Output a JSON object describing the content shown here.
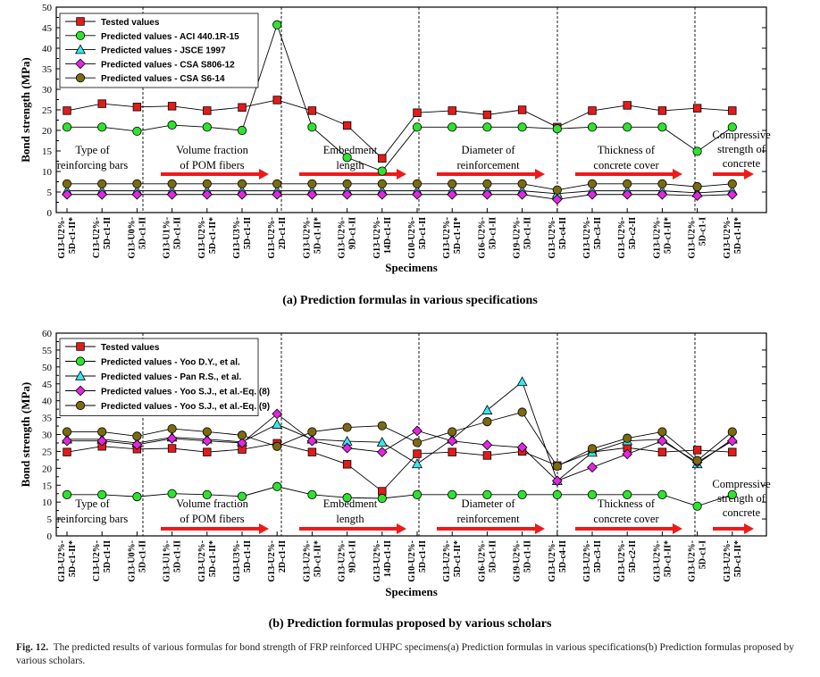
{
  "colors": {
    "tested": "#e21b1b",
    "green": "#2ee22e",
    "cyan": "#39e6ec",
    "magenta": "#e226e2",
    "olive": "#7a6a12",
    "arrow": "#ee1a1a"
  },
  "caption": {
    "label": "Fig. 12.",
    "text": "The predicted results of various formulas for bond strength of FRP reinforced UHPC specimens(a) Prediction formulas in various specifications(b) Prediction formulas proposed by various scholars."
  },
  "chart_data": [
    {
      "type": "line",
      "title": "(a) Prediction formulas in various specifications",
      "xlabel": "Specimens",
      "ylabel": "Bond strength (MPa)",
      "ylim": [
        0,
        50
      ],
      "yticks": [
        0,
        5,
        10,
        15,
        20,
        25,
        30,
        35,
        40,
        45,
        50
      ],
      "categories": [
        [
          "G13-U2%-",
          "5D-c1-II*"
        ],
        [
          "C13-U2%-",
          "5D-c1-II"
        ],
        [
          "G13-U0%-",
          "5D-c1-II"
        ],
        [
          "G13-U1%-",
          "5D-c1-II"
        ],
        [
          "G13-U2%-",
          "5D-c1-II*"
        ],
        [
          "G13-U3%-",
          "5D-c1-II"
        ],
        [
          "G13-U2%-",
          "2D-c1-II"
        ],
        [
          "G13-U2%-",
          "5D-c1-II*"
        ],
        [
          "G13-U2%-",
          "9D-c1-II"
        ],
        [
          "G13-U2%-",
          "14D-c1-II"
        ],
        [
          "G10-U2%-",
          "5D-c1-II"
        ],
        [
          "G13-U2%-",
          "5D-c1-II*"
        ],
        [
          "G16-U2%-",
          "5D-c1-II"
        ],
        [
          "G19-U2%-",
          "5D-c1-II"
        ],
        [
          "G13-U2%-",
          "5D-c4-II"
        ],
        [
          "G13-U2%-",
          "5D-c3-II"
        ],
        [
          "G13-U2%-",
          "5D-c2-II"
        ],
        [
          "G13-U2%-",
          "5D-c1-II*"
        ],
        [
          "G13-U2%-",
          "5D-c1-I"
        ],
        [
          "G13-U2%-",
          "5D-c1-II*"
        ]
      ],
      "series": [
        {
          "name": "Tested values",
          "marker": "square",
          "color": "#e21b1b",
          "values": [
            24.8,
            26.5,
            25.7,
            25.9,
            24.8,
            25.6,
            27.4,
            24.8,
            21.2,
            13.2,
            24.3,
            24.8,
            23.8,
            25.0,
            20.8,
            24.8,
            26.1,
            24.8,
            25.4,
            24.8
          ]
        },
        {
          "name": "Predicted values - ACI 440.1R-15",
          "marker": "circle",
          "color": "#2ee22e",
          "values": [
            20.8,
            20.8,
            19.8,
            21.3,
            20.8,
            20.0,
            45.7,
            20.8,
            13.4,
            10.1,
            20.8,
            20.8,
            20.8,
            20.8,
            20.4,
            20.8,
            20.8,
            20.8,
            14.9,
            20.8
          ]
        },
        {
          "name": "Predicted values - JSCE 1997",
          "marker": "triangle",
          "color": "#39e6ec",
          "values": [
            5.3,
            5.3,
            5.3,
            5.3,
            5.3,
            5.3,
            5.3,
            5.3,
            5.3,
            5.3,
            5.3,
            5.3,
            5.3,
            5.3,
            4.6,
            5.3,
            5.3,
            5.3,
            4.8,
            5.3
          ]
        },
        {
          "name": "Predicted values - CSA S806-12",
          "marker": "diamond",
          "color": "#e226e2",
          "values": [
            4.4,
            4.4,
            4.4,
            4.4,
            4.4,
            4.4,
            4.4,
            4.4,
            4.4,
            4.4,
            4.4,
            4.4,
            4.4,
            4.4,
            3.2,
            4.4,
            4.4,
            4.4,
            4.1,
            4.4
          ]
        },
        {
          "name": "Predicted values - CSA S6-14",
          "marker": "circle",
          "color": "#7a6a12",
          "values": [
            7.0,
            7.0,
            7.0,
            7.0,
            7.0,
            7.0,
            7.0,
            7.0,
            7.0,
            7.0,
            7.0,
            7.0,
            7.0,
            7.0,
            5.5,
            7.0,
            7.0,
            7.0,
            6.3,
            7.0
          ]
        }
      ],
      "groups": [
        {
          "label": [
            "Type of",
            "reinforcing bars"
          ],
          "arrow": false
        },
        {
          "label": [
            "Volume fraction",
            "of POM fibers"
          ],
          "arrow": true
        },
        {
          "label": [
            "Embedment",
            "length"
          ],
          "arrow": true
        },
        {
          "label": [
            "Diameter of",
            "reinforcement"
          ],
          "arrow": true
        },
        {
          "label": [
            "Thickness of",
            "concrete cover"
          ],
          "arrow": true
        },
        {
          "label": [
            "Compressive",
            "strength of",
            "concrete"
          ],
          "arrow": true
        }
      ],
      "legend": "top-left"
    },
    {
      "type": "line",
      "title": "(b) Prediction formulas proposed by various scholars",
      "xlabel": "Specimens",
      "ylabel": "Bond strength (MPa)",
      "ylim": [
        0,
        60
      ],
      "yticks": [
        0,
        5,
        10,
        15,
        20,
        25,
        30,
        35,
        40,
        45,
        50,
        55,
        60
      ],
      "categories": [
        [
          "G13-U2%-",
          "5D-c1-II*"
        ],
        [
          "C13-U2%-",
          "5D-c1-II"
        ],
        [
          "G13-U0%-",
          "5D-c1-II"
        ],
        [
          "G13-U1%-",
          "5D-c1-II"
        ],
        [
          "G13-U2%-",
          "5D-c1-II*"
        ],
        [
          "G13-U3%-",
          "5D-c1-II"
        ],
        [
          "G13-U2%-",
          "2D-c1-II"
        ],
        [
          "G13-U2%-",
          "5D-c1-II*"
        ],
        [
          "G13-U2%-",
          "9D-c1-II"
        ],
        [
          "G13-U2%-",
          "14D-c1-II"
        ],
        [
          "G10-U2%-",
          "5D-c1-II"
        ],
        [
          "G13-U2%-",
          "5D-c1-II*"
        ],
        [
          "G16-U2%-",
          "5D-c1-II"
        ],
        [
          "G19-U2%-",
          "5D-c1-II"
        ],
        [
          "G13-U2%-",
          "5D-c4-II"
        ],
        [
          "G13-U2%-",
          "5D-c3-II"
        ],
        [
          "G13-U2%-",
          "5D-c2-II"
        ],
        [
          "G13-U2%-",
          "5D-c1-II*"
        ],
        [
          "G13-U2%-",
          "5D-c1-I"
        ],
        [
          "G13-U2%-",
          "5D-c1-II*"
        ]
      ],
      "series": [
        {
          "name": "Tested values",
          "marker": "square",
          "color": "#e21b1b",
          "values": [
            24.8,
            26.5,
            25.7,
            25.9,
            24.8,
            25.6,
            27.4,
            24.8,
            21.2,
            13.2,
            24.3,
            24.8,
            23.8,
            25.0,
            20.8,
            24.8,
            26.1,
            24.8,
            25.4,
            24.8
          ]
        },
        {
          "name": "Predicted values - Yoo D.Y., et al.",
          "marker": "circle",
          "color": "#2ee22e",
          "values": [
            12.2,
            12.2,
            11.6,
            12.5,
            12.2,
            11.7,
            14.6,
            12.2,
            11.3,
            11.1,
            12.2,
            12.2,
            12.2,
            12.2,
            12.2,
            12.2,
            12.2,
            12.2,
            8.8,
            12.2
          ]
        },
        {
          "name": "Predicted values - Pan R.S., et al.",
          "marker": "triangle",
          "color": "#39e6ec",
          "values": [
            28.6,
            28.6,
            27.5,
            29.2,
            28.6,
            27.8,
            33.0,
            28.6,
            28.0,
            27.7,
            21.3,
            28.6,
            37.2,
            45.6,
            16.3,
            24.7,
            28.1,
            28.6,
            21.3,
            28.6
          ]
        },
        {
          "name": "Predicted values - Yoo S.J., et al.-Eq. (8)",
          "marker": "diamond",
          "color": "#e226e2",
          "values": [
            28.1,
            28.1,
            27.0,
            28.8,
            28.1,
            27.5,
            36.1,
            28.1,
            26.0,
            24.8,
            31.1,
            28.1,
            26.9,
            26.2,
            16.3,
            20.3,
            24.2,
            28.1,
            21.8,
            28.1
          ]
        },
        {
          "name": "Predicted values - Yoo S.J., et al.-Eq. (9)",
          "marker": "circle",
          "color": "#7a6a12",
          "values": [
            30.8,
            30.8,
            29.5,
            31.7,
            30.8,
            29.8,
            26.5,
            30.8,
            32.1,
            32.6,
            27.6,
            30.8,
            33.8,
            36.6,
            20.6,
            25.8,
            28.9,
            30.8,
            22.3,
            30.8
          ]
        }
      ],
      "groups": [
        {
          "label": [
            "Type of",
            "reinforcing bars"
          ],
          "arrow": false
        },
        {
          "label": [
            "Volume fraction",
            "of POM fibers"
          ],
          "arrow": true
        },
        {
          "label": [
            "Embedment",
            "length"
          ],
          "arrow": true
        },
        {
          "label": [
            "Diameter of",
            "reinforcement"
          ],
          "arrow": true
        },
        {
          "label": [
            "Thickness of",
            "concrete cover"
          ],
          "arrow": true
        },
        {
          "label": [
            "Compressive",
            "strength of",
            "concrete"
          ],
          "arrow": true
        }
      ],
      "legend": "top-left"
    }
  ]
}
